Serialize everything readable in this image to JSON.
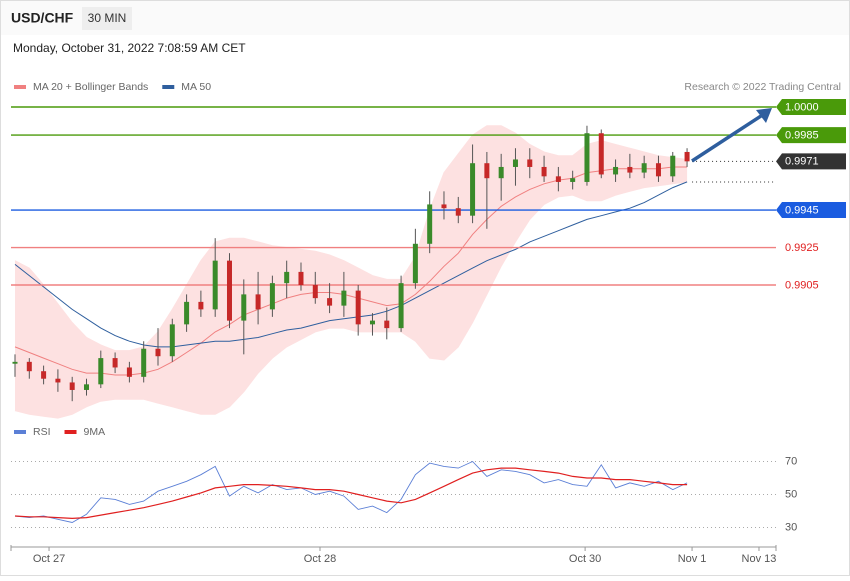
{
  "chart_data": [
    {
      "type": "candlestick",
      "title": "USD/CHF",
      "timeframe": "30 MIN",
      "subtitle": "Monday, October 31, 2022 7:08:59 AM CET",
      "credit": "Research © 2022 Trading Central",
      "up_color": "#3a8a2a",
      "down_color": "#c62828",
      "open": [
        0.9863,
        0.9864,
        0.9859,
        0.9855,
        0.9853,
        0.9849,
        0.9852,
        0.9866,
        0.9861,
        0.9856,
        0.9871,
        0.9867,
        0.9884,
        0.9896,
        0.9892,
        0.9918,
        0.9886,
        0.99,
        0.9892,
        0.9906,
        0.9912,
        0.9905,
        0.9898,
        0.9894,
        0.9902,
        0.9884,
        0.9886,
        0.9882,
        0.9906,
        0.9927,
        0.9948,
        0.9946,
        0.9942,
        0.997,
        0.9962,
        0.9968,
        0.9972,
        0.9968,
        0.9963,
        0.996,
        0.996,
        0.9986,
        0.9964,
        0.9968,
        0.9965,
        0.997,
        0.9963,
        0.9976
      ],
      "high": [
        0.9868,
        0.9866,
        0.9862,
        0.986,
        0.9856,
        0.9855,
        0.987,
        0.9869,
        0.9864,
        0.9875,
        0.9882,
        0.9887,
        0.99,
        0.9902,
        0.993,
        0.9922,
        0.9908,
        0.9912,
        0.991,
        0.9918,
        0.9917,
        0.9912,
        0.9906,
        0.9912,
        0.9905,
        0.989,
        0.9893,
        0.991,
        0.9935,
        0.9955,
        0.9955,
        0.9952,
        0.998,
        0.9976,
        0.9975,
        0.9978,
        0.9978,
        0.9974,
        0.9968,
        0.9966,
        0.999,
        0.9988,
        0.9972,
        0.9975,
        0.9974,
        0.9974,
        0.9976,
        0.9978
      ],
      "low": [
        0.9856,
        0.9855,
        0.9852,
        0.9848,
        0.9843,
        0.9846,
        0.985,
        0.9858,
        0.9853,
        0.9853,
        0.9862,
        0.9864,
        0.988,
        0.9888,
        0.9888,
        0.9882,
        0.9868,
        0.9884,
        0.9888,
        0.9898,
        0.9902,
        0.9895,
        0.989,
        0.9888,
        0.9878,
        0.9878,
        0.9876,
        0.988,
        0.9903,
        0.9922,
        0.994,
        0.9938,
        0.9938,
        0.9935,
        0.995,
        0.9958,
        0.9962,
        0.996,
        0.9955,
        0.9956,
        0.9958,
        0.9962,
        0.996,
        0.9962,
        0.9962,
        0.996,
        0.996,
        0.9968
      ],
      "close": [
        0.9864,
        0.9859,
        0.9855,
        0.9853,
        0.9849,
        0.9852,
        0.9866,
        0.9861,
        0.9856,
        0.9871,
        0.9867,
        0.9884,
        0.9896,
        0.9892,
        0.9918,
        0.9886,
        0.99,
        0.9892,
        0.9906,
        0.9912,
        0.9905,
        0.9898,
        0.9894,
        0.9902,
        0.9884,
        0.9886,
        0.9882,
        0.9906,
        0.9927,
        0.9948,
        0.9946,
        0.9942,
        0.997,
        0.9962,
        0.9968,
        0.9972,
        0.9968,
        0.9963,
        0.996,
        0.9962,
        0.9986,
        0.9964,
        0.9968,
        0.9965,
        0.997,
        0.9963,
        0.9974,
        0.9971
      ],
      "series": [
        {
          "name": "MA 20 + Bollinger Bands",
          "color": "#f08080",
          "band_color": "#fde1e1",
          "values": [
            0.9872,
            0.9869,
            0.9866,
            0.9863,
            0.986,
            0.9858,
            0.9858,
            0.9857,
            0.9857,
            0.9858,
            0.986,
            0.9864,
            0.9869,
            0.9874,
            0.988,
            0.9884,
            0.9889,
            0.9892,
            0.9895,
            0.9898,
            0.99,
            0.9901,
            0.9901,
            0.99,
            0.9898,
            0.9896,
            0.9894,
            0.9895,
            0.99,
            0.9907,
            0.9915,
            0.9922,
            0.9932,
            0.994,
            0.9947,
            0.9952,
            0.9956,
            0.9959,
            0.9961,
            0.9962,
            0.9965,
            0.9966,
            0.9967,
            0.9967,
            0.9967,
            0.9967,
            0.9968,
            0.9968
          ],
          "upper": [
            0.9918,
            0.9914,
            0.9905,
            0.9895,
            0.9885,
            0.9877,
            0.9873,
            0.987,
            0.987,
            0.9872,
            0.988,
            0.9892,
            0.9905,
            0.9918,
            0.9928,
            0.993,
            0.993,
            0.9928,
            0.9926,
            0.9925,
            0.9924,
            0.9923,
            0.9921,
            0.9918,
            0.9914,
            0.991,
            0.9908,
            0.9908,
            0.992,
            0.9945,
            0.9965,
            0.9975,
            0.9985,
            0.999,
            0.999,
            0.9986,
            0.998,
            0.9976,
            0.9974,
            0.9974,
            0.998,
            0.9982,
            0.998,
            0.9978,
            0.9976,
            0.9974,
            0.9973,
            0.9972
          ],
          "lower": [
            0.9838,
            0.9836,
            0.9835,
            0.9834,
            0.9836,
            0.984,
            0.9843,
            0.9844,
            0.9844,
            0.9844,
            0.9842,
            0.984,
            0.9838,
            0.9836,
            0.9836,
            0.984,
            0.9848,
            0.9858,
            0.9866,
            0.9872,
            0.9876,
            0.988,
            0.9882,
            0.9882,
            0.988,
            0.988,
            0.988,
            0.988,
            0.9875,
            0.9866,
            0.9865,
            0.9872,
            0.9885,
            0.99,
            0.9915,
            0.9928,
            0.994,
            0.9948,
            0.9952,
            0.9953,
            0.995,
            0.995,
            0.9953,
            0.9955,
            0.9957,
            0.9958,
            0.9959,
            0.996
          ]
        },
        {
          "name": "MA 50",
          "color": "#2f5f9e",
          "values": [
            0.9916,
            0.991,
            0.9904,
            0.9898,
            0.9892,
            0.9887,
            0.9882,
            0.9878,
            0.9875,
            0.9873,
            0.9872,
            0.9872,
            0.9873,
            0.9874,
            0.9875,
            0.9875,
            0.9876,
            0.9877,
            0.9879,
            0.9881,
            0.9882,
            0.9884,
            0.9886,
            0.9887,
            0.9888,
            0.9889,
            0.9891,
            0.9894,
            0.9898,
            0.9902,
            0.9906,
            0.991,
            0.9914,
            0.9918,
            0.9921,
            0.9924,
            0.9928,
            0.9931,
            0.9934,
            0.9937,
            0.994,
            0.9942,
            0.9944,
            0.9946,
            0.9949,
            0.9953,
            0.9957,
            0.996
          ]
        }
      ],
      "levels": [
        {
          "value": 1,
          "label": "1.0000",
          "color": "#4a9a0a",
          "style": "solid",
          "box": true
        },
        {
          "value": 0.9985,
          "color": "#4a9a0a",
          "style": "solid",
          "box": true
        },
        {
          "value": 0.9971,
          "color": "#333333",
          "style": "dotted",
          "box": true
        },
        {
          "value": 0.996,
          "color": "#333333",
          "style": "dotted",
          "box": false
        },
        {
          "value": 0.9945,
          "color": "#1a5ce0",
          "style": "solid",
          "box": true
        },
        {
          "value": 0.9925,
          "color": "#f08080",
          "style": "solid",
          "box": false
        },
        {
          "value": 0.9905,
          "color": "#f08080",
          "style": "solid",
          "box": false
        }
      ],
      "ylim": [
        0.98383,
        1.00064
      ],
      "xlim": [
        -0.28,
        53.22
      ],
      "xticks": [
        {
          "value": 2.38,
          "label": "Oct 27"
        },
        {
          "value": 21.33,
          "label": "Oct 28"
        },
        {
          "value": 39.87,
          "label": "Oct 30"
        },
        {
          "value": 47.35,
          "label": "Nov 1"
        },
        {
          "value": 52.03,
          "label": "Nov 13"
        }
      ]
    },
    {
      "type": "line",
      "series": [
        {
          "name": "RSI",
          "color": "#5b7fd6",
          "values": [
            37,
            36,
            37,
            35,
            33,
            38,
            48,
            47,
            44,
            46,
            52,
            55,
            58,
            62,
            67,
            49,
            55,
            51,
            56,
            53,
            54,
            50,
            52,
            49,
            41,
            43,
            39,
            47,
            62,
            69,
            67,
            66,
            70,
            61,
            65,
            64,
            62,
            57,
            59,
            56,
            55,
            68,
            54,
            57,
            55,
            58,
            53,
            57
          ]
        },
        {
          "name": "9MA",
          "color": "#e02020",
          "values": [
            37,
            36.5,
            36.5,
            36,
            35.5,
            36,
            37.5,
            39,
            40.5,
            42,
            44,
            46,
            48.5,
            51,
            54,
            55,
            56,
            56,
            55.5,
            55,
            54,
            53,
            53,
            52,
            50,
            48,
            46,
            45,
            47,
            51,
            55,
            59,
            63,
            65,
            66,
            66,
            65,
            64,
            63,
            61,
            60,
            60,
            59,
            59,
            58,
            57,
            56,
            56
          ]
        }
      ],
      "ylim": [
        20,
        80
      ],
      "yticks": [
        30,
        50,
        70
      ]
    }
  ]
}
